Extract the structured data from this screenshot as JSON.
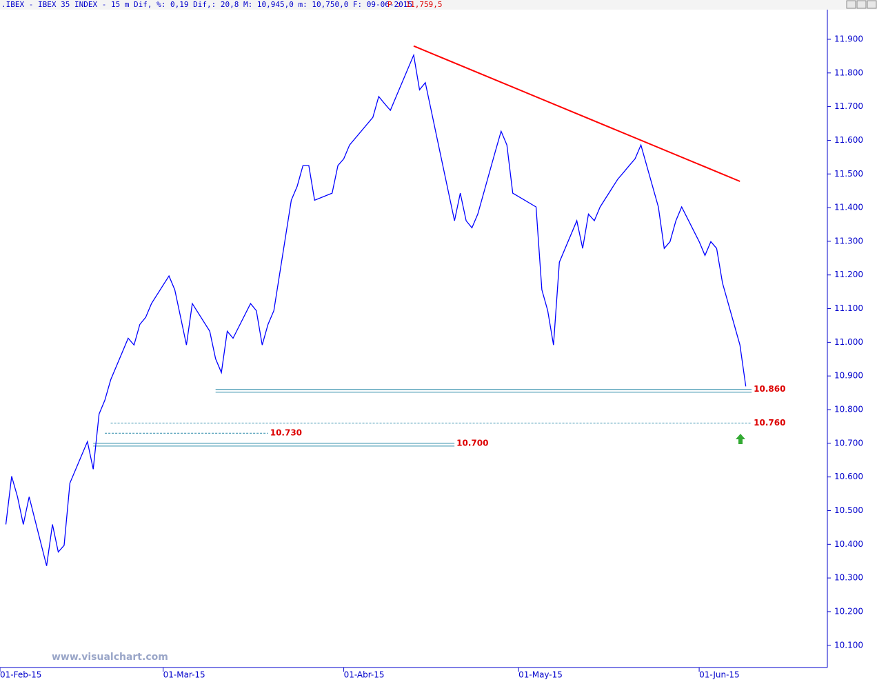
{
  "chart_data": {
    "type": "line",
    "header": ".IBEX - IBEX 35 INDEX -  15 m Dif,  %: 0,19 Dif,: 20,8 M: 10,945,0 m: 10,750,0 F: 09-06-2015",
    "header_price": "P : 11,759,5",
    "watermark": "www.visualchart.com",
    "x": [
      "02-Feb-15",
      "03-Feb-15",
      "04-Feb-15",
      "05-Feb-15",
      "06-Feb-15",
      "09-Feb-15",
      "10-Feb-15",
      "11-Feb-15",
      "12-Feb-15",
      "13-Feb-15",
      "16-Feb-15",
      "17-Feb-15",
      "18-Feb-15",
      "19-Feb-15",
      "20-Feb-15",
      "23-Feb-15",
      "24-Feb-15",
      "25-Feb-15",
      "26-Feb-15",
      "27-Feb-15",
      "02-Mar-15",
      "03-Mar-15",
      "04-Mar-15",
      "05-Mar-15",
      "06-Mar-15",
      "09-Mar-15",
      "10-Mar-15",
      "11-Mar-15",
      "12-Mar-15",
      "13-Mar-15",
      "16-Mar-15",
      "17-Mar-15",
      "18-Mar-15",
      "19-Mar-15",
      "20-Mar-15",
      "23-Mar-15",
      "24-Mar-15",
      "25-Mar-15",
      "26-Mar-15",
      "27-Mar-15",
      "30-Mar-15",
      "31-Mar-15",
      "01-Abr-15",
      "02-Abr-15",
      "06-Abr-15",
      "07-Abr-15",
      "08-Abr-15",
      "09-Abr-15",
      "10-Abr-15",
      "13-Abr-15",
      "14-Abr-15",
      "15-Abr-15",
      "16-Abr-15",
      "17-Abr-15",
      "20-Abr-15",
      "21-Abr-15",
      "22-Abr-15",
      "23-Abr-15",
      "24-Abr-15",
      "27-Abr-15",
      "28-Abr-15",
      "29-Abr-15",
      "30-Abr-15",
      "04-May-15",
      "05-May-15",
      "06-May-15",
      "07-May-15",
      "08-May-15",
      "11-May-15",
      "12-May-15",
      "13-May-15",
      "14-May-15",
      "15-May-15",
      "18-May-15",
      "19-May-15",
      "20-May-15",
      "21-May-15",
      "22-May-15",
      "25-May-15",
      "26-May-15",
      "27-May-15",
      "28-May-15",
      "29-May-15",
      "01-Jun-15",
      "02-Jun-15",
      "03-Jun-15",
      "04-Jun-15",
      "05-Jun-15",
      "08-Jun-15",
      "09-Jun-15"
    ],
    "series": [
      {
        "name": "IBEX 35",
        "color": "#0000ff",
        "values": [
          10459,
          10602,
          10541,
          10459,
          10541,
          10336,
          10459,
          10377,
          10397,
          10582,
          10705,
          10623,
          10787,
          10828,
          10889,
          11012,
          10992,
          11053,
          11074,
          11115,
          11197,
          11156,
          11074,
          10992,
          11115,
          11033,
          10951,
          10910,
          11033,
          11012,
          11115,
          11094,
          10992,
          11053,
          11094,
          11422,
          11463,
          11525,
          11525,
          11422,
          11443,
          11525,
          11545,
          11586,
          11668,
          11730,
          11709,
          11689,
          11730,
          11853,
          11750,
          11771,
          11689,
          11607,
          11361,
          11443,
          11361,
          11340,
          11381,
          11566,
          11627,
          11586,
          11443,
          11402,
          11156,
          11094,
          10992,
          11238,
          11361,
          11279,
          11381,
          11361,
          11402,
          11484,
          11504,
          11525,
          11545,
          11586,
          11402,
          11279,
          11299,
          11361,
          11402,
          11299,
          11258,
          11299,
          11279,
          11176,
          10992,
          10869
        ]
      }
    ],
    "trendline": {
      "color": "#ff0000",
      "x": [
        "13-Abr-15",
        "08-Jun-15"
      ],
      "values": [
        11880,
        11478
      ]
    },
    "levels": [
      {
        "value": 10860,
        "label": "10.860",
        "start": "10-Mar-15",
        "end": "10-Jun-15",
        "style": "solid"
      },
      {
        "value": 10760,
        "label": "10.760",
        "start": "20-Feb-15",
        "end": "10-Jun-15",
        "style": "dashed"
      },
      {
        "value": 10730,
        "label": "10.730",
        "start": "19-Feb-15",
        "end": "19-Mar-15",
        "style": "dashed"
      },
      {
        "value": 10700,
        "label": "10.700",
        "start": "17-Feb-15",
        "end": "20-Abr-15",
        "style": "solid"
      }
    ],
    "xlim": [
      "01-Feb-15",
      "23-Jun-15"
    ],
    "xticks": [
      "01-Feb-15",
      "01-Mar-15",
      "01-Abr-15",
      "01-May-15",
      "01-Jun-15"
    ],
    "ylim": [
      10034,
      11988
    ],
    "yticks": [
      {
        "value": 10100,
        "label": "10.100"
      },
      {
        "value": 10200,
        "label": "10.200"
      },
      {
        "value": 10300,
        "label": "10.300"
      },
      {
        "value": 10400,
        "label": "10.400"
      },
      {
        "value": 10500,
        "label": "10.500"
      },
      {
        "value": 10600,
        "label": "10.600"
      },
      {
        "value": 10700,
        "label": "10.700"
      },
      {
        "value": 10800,
        "label": "10.800"
      },
      {
        "value": 10900,
        "label": "10.900"
      },
      {
        "value": 11000,
        "label": "11.000"
      },
      {
        "value": 11100,
        "label": "11.100"
      },
      {
        "value": 11200,
        "label": "11.200"
      },
      {
        "value": 11300,
        "label": "11.300"
      },
      {
        "value": 11400,
        "label": "11.400"
      },
      {
        "value": 11500,
        "label": "11.500"
      },
      {
        "value": 11600,
        "label": "11.600"
      },
      {
        "value": 11700,
        "label": "11.700"
      },
      {
        "value": 11800,
        "label": "11.800"
      },
      {
        "value": 11900,
        "label": "11.900"
      }
    ]
  }
}
